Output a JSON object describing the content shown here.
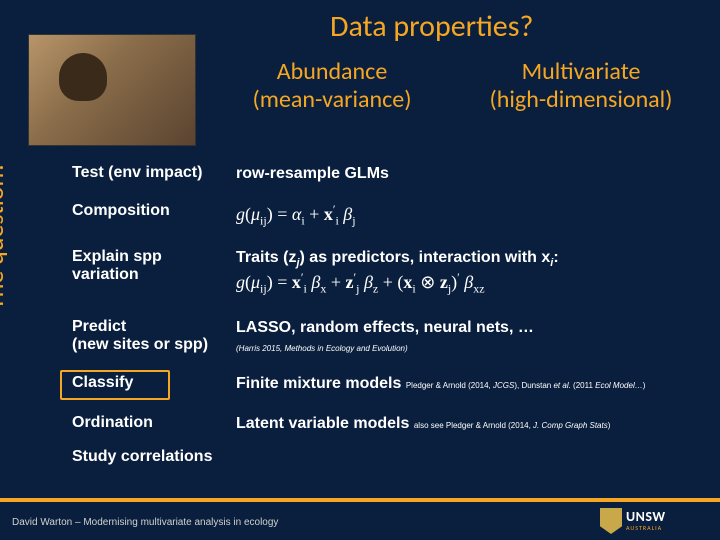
{
  "colors": {
    "background": "#0a1f3d",
    "accent": "#f5a623",
    "text": "#ffffff",
    "footer_text": "#d0d0d0"
  },
  "typography": {
    "title_fontsize": 30,
    "header_fontsize": 24,
    "body_fontsize": 16,
    "formula_fontsize": 18,
    "citation_fontsize": 8,
    "footer_fontsize": 10,
    "ylabel_fontsize": 26
  },
  "title": "Data properties?",
  "columns": {
    "abundance": {
      "line1": "Abundance",
      "line2": "(mean-variance)"
    },
    "multivariate": {
      "line1": "Multivariate",
      "line2": "(high-dimensional)"
    }
  },
  "ylabel": "The question?",
  "rows": {
    "test": {
      "label": "Test (env impact)",
      "value": "row-resample GLMs"
    },
    "composition": {
      "label": "Composition",
      "formula1": "g(μᵢⱼ) = αᵢ + xᵢ′ βⱼ"
    },
    "explain": {
      "label_l1": "Explain spp",
      "label_l2": "variation",
      "value": "Traits (zⱼ) as predictors, interaction with xᵢ:",
      "formula2": "g(μᵢⱼ) = xᵢ′ βₓ + zⱼ′ β_z + (xᵢ ⊗ zⱼ)′ β_{xz}"
    },
    "predict": {
      "label_l1": "Predict",
      "label_l2": "(new sites or spp)",
      "value": "LASSO, random effects, neural nets, …",
      "cite": "(Harris 2015, Methods in Ecology and Evolution)"
    },
    "classify": {
      "label": "Classify",
      "value": "Finite mixture models",
      "cite": "Pledger & Arnold (2014, JCGS), Dunstan et al. (2011 Ecol Model…)"
    },
    "ordination": {
      "label": "Ordination",
      "value": "Latent variable models",
      "cite": "also see Pledger & Arnold (2014, J. Comp Graph Stats)"
    },
    "study": {
      "label": "Study correlations"
    }
  },
  "highlight": {
    "row": "classify",
    "border_color": "#f5a623",
    "border_width": 2
  },
  "footer": "David Warton – Modernising multivariate analysis in ecology",
  "logo": {
    "text": "UNSW",
    "subtext": "AUSTRALIA"
  }
}
